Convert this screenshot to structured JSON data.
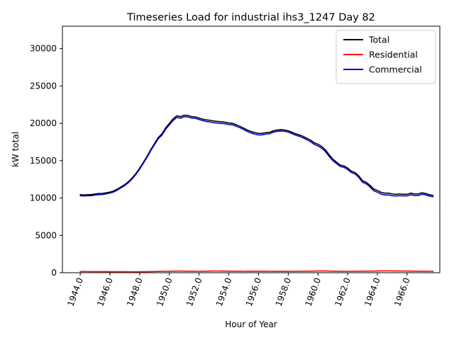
{
  "chart_data": {
    "type": "line",
    "title": "Timeseries Load for industrial ihs3_1247  Day 82",
    "xlabel": "Hour of Year",
    "ylabel": "kW total",
    "xlim": [
      1942.8,
      1968.2
    ],
    "ylim": [
      0,
      33000
    ],
    "x_ticks": [
      1944,
      1946,
      1948,
      1950,
      1952,
      1954,
      1956,
      1958,
      1960,
      1962,
      1964,
      1966
    ],
    "x_tick_labels": [
      "1944.0",
      "1946.0",
      "1948.0",
      "1950.0",
      "1952.0",
      "1954.0",
      "1956.0",
      "1958.0",
      "1960.0",
      "1962.0",
      "1964.0",
      "1966.0"
    ],
    "y_ticks": [
      0,
      5000,
      10000,
      15000,
      20000,
      25000,
      30000
    ],
    "y_tick_labels": [
      "0",
      "5000",
      "10000",
      "15000",
      "20000",
      "25000",
      "30000"
    ],
    "legend_position": "top-right",
    "x": [
      1944.0,
      1944.25,
      1944.5,
      1944.75,
      1945.0,
      1945.25,
      1945.5,
      1945.75,
      1946.0,
      1946.25,
      1946.5,
      1946.75,
      1947.0,
      1947.25,
      1947.5,
      1947.75,
      1948.0,
      1948.25,
      1948.5,
      1948.75,
      1949.0,
      1949.25,
      1949.5,
      1949.75,
      1950.0,
      1950.25,
      1950.5,
      1950.75,
      1951.0,
      1951.25,
      1951.5,
      1951.75,
      1952.0,
      1952.25,
      1952.5,
      1952.75,
      1953.0,
      1953.25,
      1953.5,
      1953.75,
      1954.0,
      1954.25,
      1954.5,
      1954.75,
      1955.0,
      1955.25,
      1955.5,
      1955.75,
      1956.0,
      1956.25,
      1956.5,
      1956.75,
      1957.0,
      1957.25,
      1957.5,
      1957.75,
      1958.0,
      1958.25,
      1958.5,
      1958.75,
      1959.0,
      1959.25,
      1959.5,
      1959.75,
      1960.0,
      1960.25,
      1960.5,
      1960.75,
      1961.0,
      1961.25,
      1961.5,
      1961.75,
      1962.0,
      1962.25,
      1962.5,
      1962.75,
      1963.0,
      1963.25,
      1963.5,
      1963.75,
      1964.0,
      1964.25,
      1964.5,
      1964.75,
      1965.0,
      1965.25,
      1965.5,
      1965.75,
      1966.0,
      1966.25,
      1966.5,
      1966.75,
      1967.0,
      1967.25,
      1967.5,
      1967.75
    ],
    "series": [
      {
        "name": "Total",
        "color": "#000000",
        "values": [
          10450,
          10420,
          10450,
          10460,
          10550,
          10600,
          10620,
          10700,
          10800,
          10950,
          11200,
          11500,
          11800,
          12200,
          12700,
          13300,
          14000,
          14800,
          15600,
          16500,
          17300,
          18100,
          18600,
          19400,
          20000,
          20600,
          21000,
          20900,
          21100,
          21050,
          20900,
          20850,
          20700,
          20550,
          20450,
          20400,
          20300,
          20250,
          20200,
          20150,
          20050,
          20000,
          19800,
          19600,
          19350,
          19100,
          18900,
          18750,
          18650,
          18650,
          18750,
          18800,
          19000,
          19100,
          19150,
          19100,
          19000,
          18800,
          18600,
          18450,
          18250,
          18000,
          17750,
          17400,
          17200,
          16900,
          16450,
          15800,
          15200,
          14800,
          14400,
          14300,
          14000,
          13600,
          13400,
          12950,
          12300,
          12100,
          11700,
          11200,
          11000,
          10750,
          10650,
          10650,
          10550,
          10500,
          10550,
          10500,
          10500,
          10650,
          10550,
          10550,
          10700,
          10600,
          10450,
          10350
        ]
      },
      {
        "name": "Residential",
        "color": "#ff0000",
        "values": [
          150,
          160,
          155,
          150,
          150,
          148,
          150,
          145,
          140,
          140,
          138,
          135,
          135,
          130,
          130,
          128,
          130,
          135,
          140,
          150,
          160,
          170,
          180,
          190,
          200,
          210,
          220,
          215,
          210,
          205,
          200,
          195,
          190,
          200,
          210,
          220,
          230,
          225,
          220,
          215,
          210,
          205,
          200,
          195,
          190,
          195,
          200,
          205,
          210,
          200,
          195,
          190,
          185,
          180,
          180,
          175,
          180,
          185,
          190,
          195,
          200,
          205,
          210,
          220,
          230,
          240,
          230,
          220,
          210,
          200,
          195,
          190,
          185,
          190,
          195,
          200,
          205,
          210,
          215,
          220,
          230,
          240,
          250,
          245,
          240,
          235,
          230,
          225,
          220,
          215,
          210,
          205,
          200,
          195,
          190,
          185
        ]
      },
      {
        "name": "Commercial",
        "color": "#0000cc",
        "values": [
          10300,
          10270,
          10300,
          10310,
          10400,
          10450,
          10470,
          10560,
          10660,
          10810,
          11060,
          11370,
          11670,
          12070,
          12570,
          13170,
          13870,
          14660,
          15460,
          16350,
          17140,
          17930,
          18420,
          19210,
          19800,
          20390,
          20780,
          20690,
          20890,
          20850,
          20700,
          20660,
          20510,
          20350,
          20240,
          20180,
          20070,
          20030,
          19980,
          19940,
          19840,
          19800,
          19600,
          19410,
          19160,
          18910,
          18700,
          18550,
          18440,
          18450,
          18560,
          18610,
          18820,
          18920,
          18970,
          18930,
          18820,
          18620,
          18410,
          18260,
          18050,
          17800,
          17540,
          17180,
          16970,
          16660,
          16220,
          15580,
          14990,
          14600,
          14210,
          14110,
          13820,
          13410,
          13210,
          12750,
          12100,
          11890,
          11490,
          10980,
          10770,
          10510,
          10400,
          10410,
          10310,
          10270,
          10320,
          10280,
          10280,
          10440,
          10340,
          10350,
          10500,
          10410,
          10260,
          10170
        ]
      }
    ]
  }
}
